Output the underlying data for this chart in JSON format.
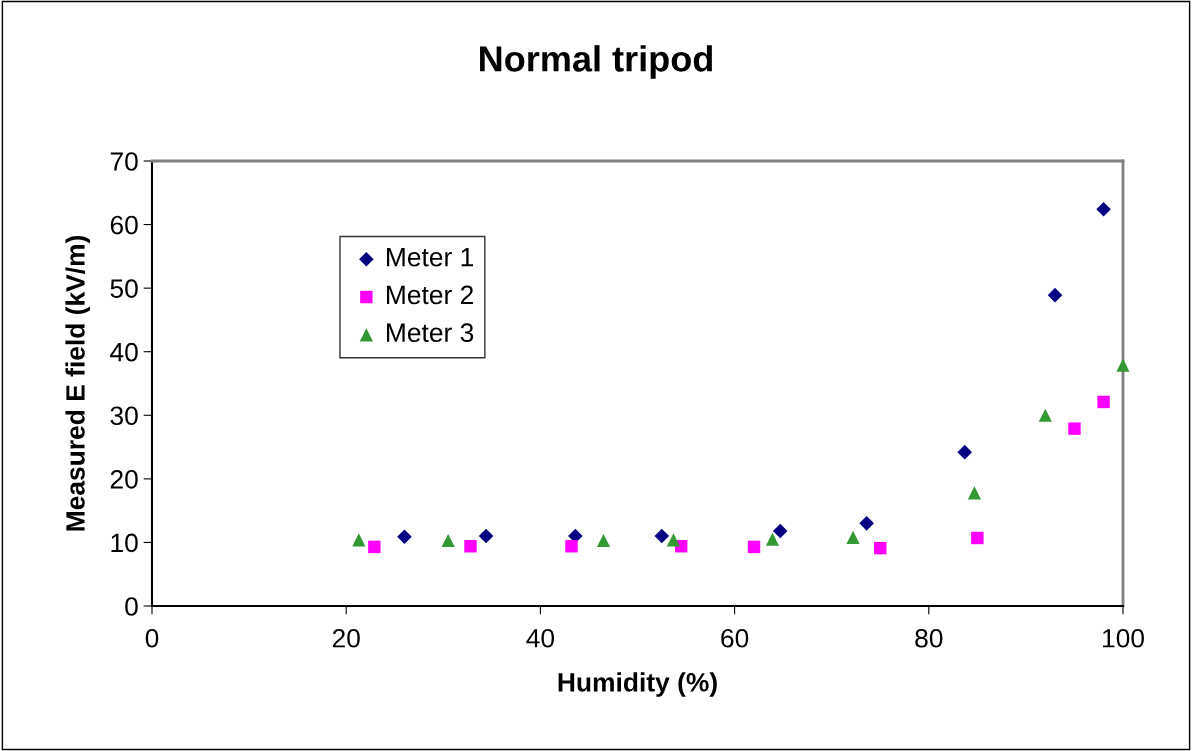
{
  "chart_data": {
    "type": "scatter",
    "title": "Normal tripod",
    "xlabel": "Humidity (%)",
    "ylabel": "Measured E field (kV/m)",
    "xlim": [
      0,
      100
    ],
    "xticks": [
      0,
      20,
      40,
      60,
      80,
      100
    ],
    "ylim": [
      0,
      70
    ],
    "yticks": [
      0,
      10,
      20,
      30,
      40,
      50,
      60,
      70
    ],
    "grid": false,
    "legend": "top left",
    "series": [
      {
        "name": "Meter 1",
        "color": "#000080",
        "marker": "diamond",
        "x": [
          26.0,
          34.4,
          43.6,
          52.5,
          64.7,
          73.6,
          83.7,
          93.0,
          98.0
        ],
        "values": [
          10.9,
          11.0,
          11.0,
          11.0,
          11.8,
          13.0,
          24.2,
          48.9,
          62.4
        ]
      },
      {
        "name": "Meter 2",
        "color": "#ff00ff",
        "marker": "square",
        "x": [
          22.9,
          32.8,
          43.2,
          54.5,
          62.0,
          75.0,
          85.0,
          95.0,
          98.0
        ],
        "values": [
          9.3,
          9.4,
          9.4,
          9.4,
          9.3,
          9.1,
          10.7,
          27.9,
          32.1
        ]
      },
      {
        "name": "Meter 3",
        "color": "#339933",
        "marker": "triangle",
        "x": [
          21.3,
          30.5,
          46.5,
          53.7,
          63.9,
          72.2,
          84.7,
          92.0,
          100.0
        ],
        "values": [
          10.4,
          10.3,
          10.3,
          10.4,
          10.5,
          10.8,
          17.8,
          30.0,
          37.9
        ]
      }
    ]
  }
}
